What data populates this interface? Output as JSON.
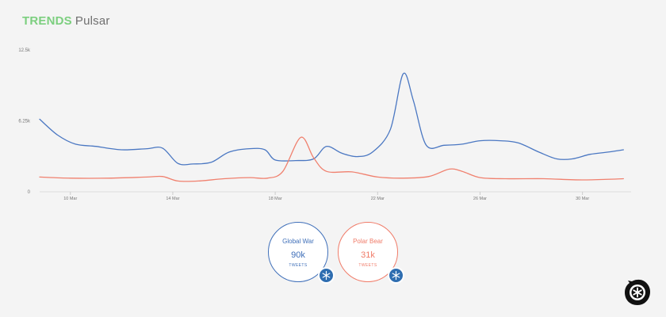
{
  "header": {
    "brand": "TRENDS",
    "product": "Pulsar"
  },
  "colors": {
    "brand_green": "#7ccf7f",
    "series_blue": "#4a77c2",
    "series_red": "#f0806e",
    "badge_blue": "#2e6db0"
  },
  "chart_data": {
    "type": "line",
    "x_labels": [
      "10 Mar",
      "14 Mar",
      "18 Mar",
      "22 Mar",
      "26 Mar",
      "30 Mar"
    ],
    "x_label_days": [
      10,
      14,
      18,
      22,
      26,
      30
    ],
    "x_range": [
      8.8,
      31.9
    ],
    "y_ticks": [
      {
        "value": 0,
        "label": "0"
      },
      {
        "value": 6250,
        "label": "6.25k"
      },
      {
        "value": 12500,
        "label": "12.5k"
      }
    ],
    "ylim": [
      0,
      12500
    ],
    "series": [
      {
        "name": "Global War",
        "color": "#4a77c2",
        "points": [
          [
            8.8,
            6400
          ],
          [
            9.5,
            5000
          ],
          [
            10.2,
            4200
          ],
          [
            11.0,
            4000
          ],
          [
            12.0,
            3700
          ],
          [
            13.0,
            3800
          ],
          [
            13.6,
            3850
          ],
          [
            14.2,
            2500
          ],
          [
            14.8,
            2450
          ],
          [
            15.5,
            2600
          ],
          [
            16.2,
            3500
          ],
          [
            17.0,
            3800
          ],
          [
            17.6,
            3700
          ],
          [
            18.0,
            2800
          ],
          [
            18.8,
            2750
          ],
          [
            19.5,
            2900
          ],
          [
            20.0,
            4000
          ],
          [
            20.6,
            3400
          ],
          [
            21.2,
            3100
          ],
          [
            21.8,
            3500
          ],
          [
            22.5,
            5500
          ],
          [
            23.0,
            10400
          ],
          [
            23.4,
            8000
          ],
          [
            23.9,
            4100
          ],
          [
            24.6,
            4100
          ],
          [
            25.3,
            4200
          ],
          [
            26.0,
            4500
          ],
          [
            26.8,
            4500
          ],
          [
            27.5,
            4300
          ],
          [
            28.3,
            3500
          ],
          [
            29.0,
            2900
          ],
          [
            29.6,
            2900
          ],
          [
            30.3,
            3300
          ],
          [
            31.0,
            3500
          ],
          [
            31.6,
            3700
          ]
        ]
      },
      {
        "name": "Polar Bear",
        "color": "#f0806e",
        "points": [
          [
            8.8,
            1300
          ],
          [
            10.0,
            1200
          ],
          [
            11.5,
            1200
          ],
          [
            13.0,
            1300
          ],
          [
            13.6,
            1350
          ],
          [
            14.2,
            950
          ],
          [
            15.0,
            950
          ],
          [
            16.0,
            1150
          ],
          [
            17.0,
            1250
          ],
          [
            17.7,
            1200
          ],
          [
            18.3,
            1800
          ],
          [
            19.0,
            4800
          ],
          [
            19.5,
            3000
          ],
          [
            20.0,
            1800
          ],
          [
            21.0,
            1750
          ],
          [
            22.0,
            1300
          ],
          [
            23.0,
            1200
          ],
          [
            24.0,
            1350
          ],
          [
            24.8,
            2000
          ],
          [
            25.3,
            1800
          ],
          [
            26.0,
            1250
          ],
          [
            27.0,
            1150
          ],
          [
            28.5,
            1150
          ],
          [
            30.0,
            1050
          ],
          [
            31.6,
            1150
          ]
        ]
      }
    ],
    "grid": false
  },
  "bubbles": [
    {
      "name": "Global War",
      "count": "90k",
      "unit": "TWEETS",
      "color": "#3f6fb9",
      "icon": "snowflake-icon"
    },
    {
      "name": "Polar Bear",
      "count": "31k",
      "unit": "TWEETS",
      "color": "#f07b68",
      "icon": "snowflake-icon"
    }
  ],
  "logo": {
    "icon": "pulsar-logo-icon"
  }
}
